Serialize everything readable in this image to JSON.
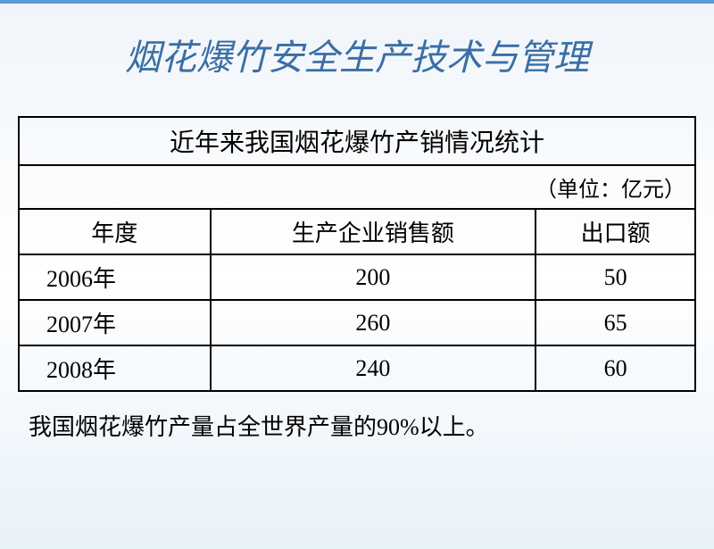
{
  "page": {
    "title": "烟花爆竹安全生产技术与管理",
    "title_color": "#3a6ea5",
    "title_fontsize": 40,
    "background_gradient": [
      "#f0f5fa",
      "#ffffff",
      "#e8f2f9"
    ],
    "top_bar_color": "#5b9bd5"
  },
  "table": {
    "type": "table",
    "title": "近年来我国烟花爆竹产销情况统计",
    "unit": "（单位：亿元）",
    "border_color": "#000000",
    "columns": [
      "年度",
      "生产企业销售额",
      "出口额"
    ],
    "rows": [
      {
        "year": "2006年",
        "sales": "200",
        "export": "50"
      },
      {
        "year": "2007年",
        "sales": "260",
        "export": "65"
      },
      {
        "year": "2008年",
        "sales": "240",
        "export": "60"
      }
    ],
    "font_size": 26,
    "title_font_size": 28
  },
  "note": "我国烟花爆竹产量占全世界产量的90%以上。"
}
